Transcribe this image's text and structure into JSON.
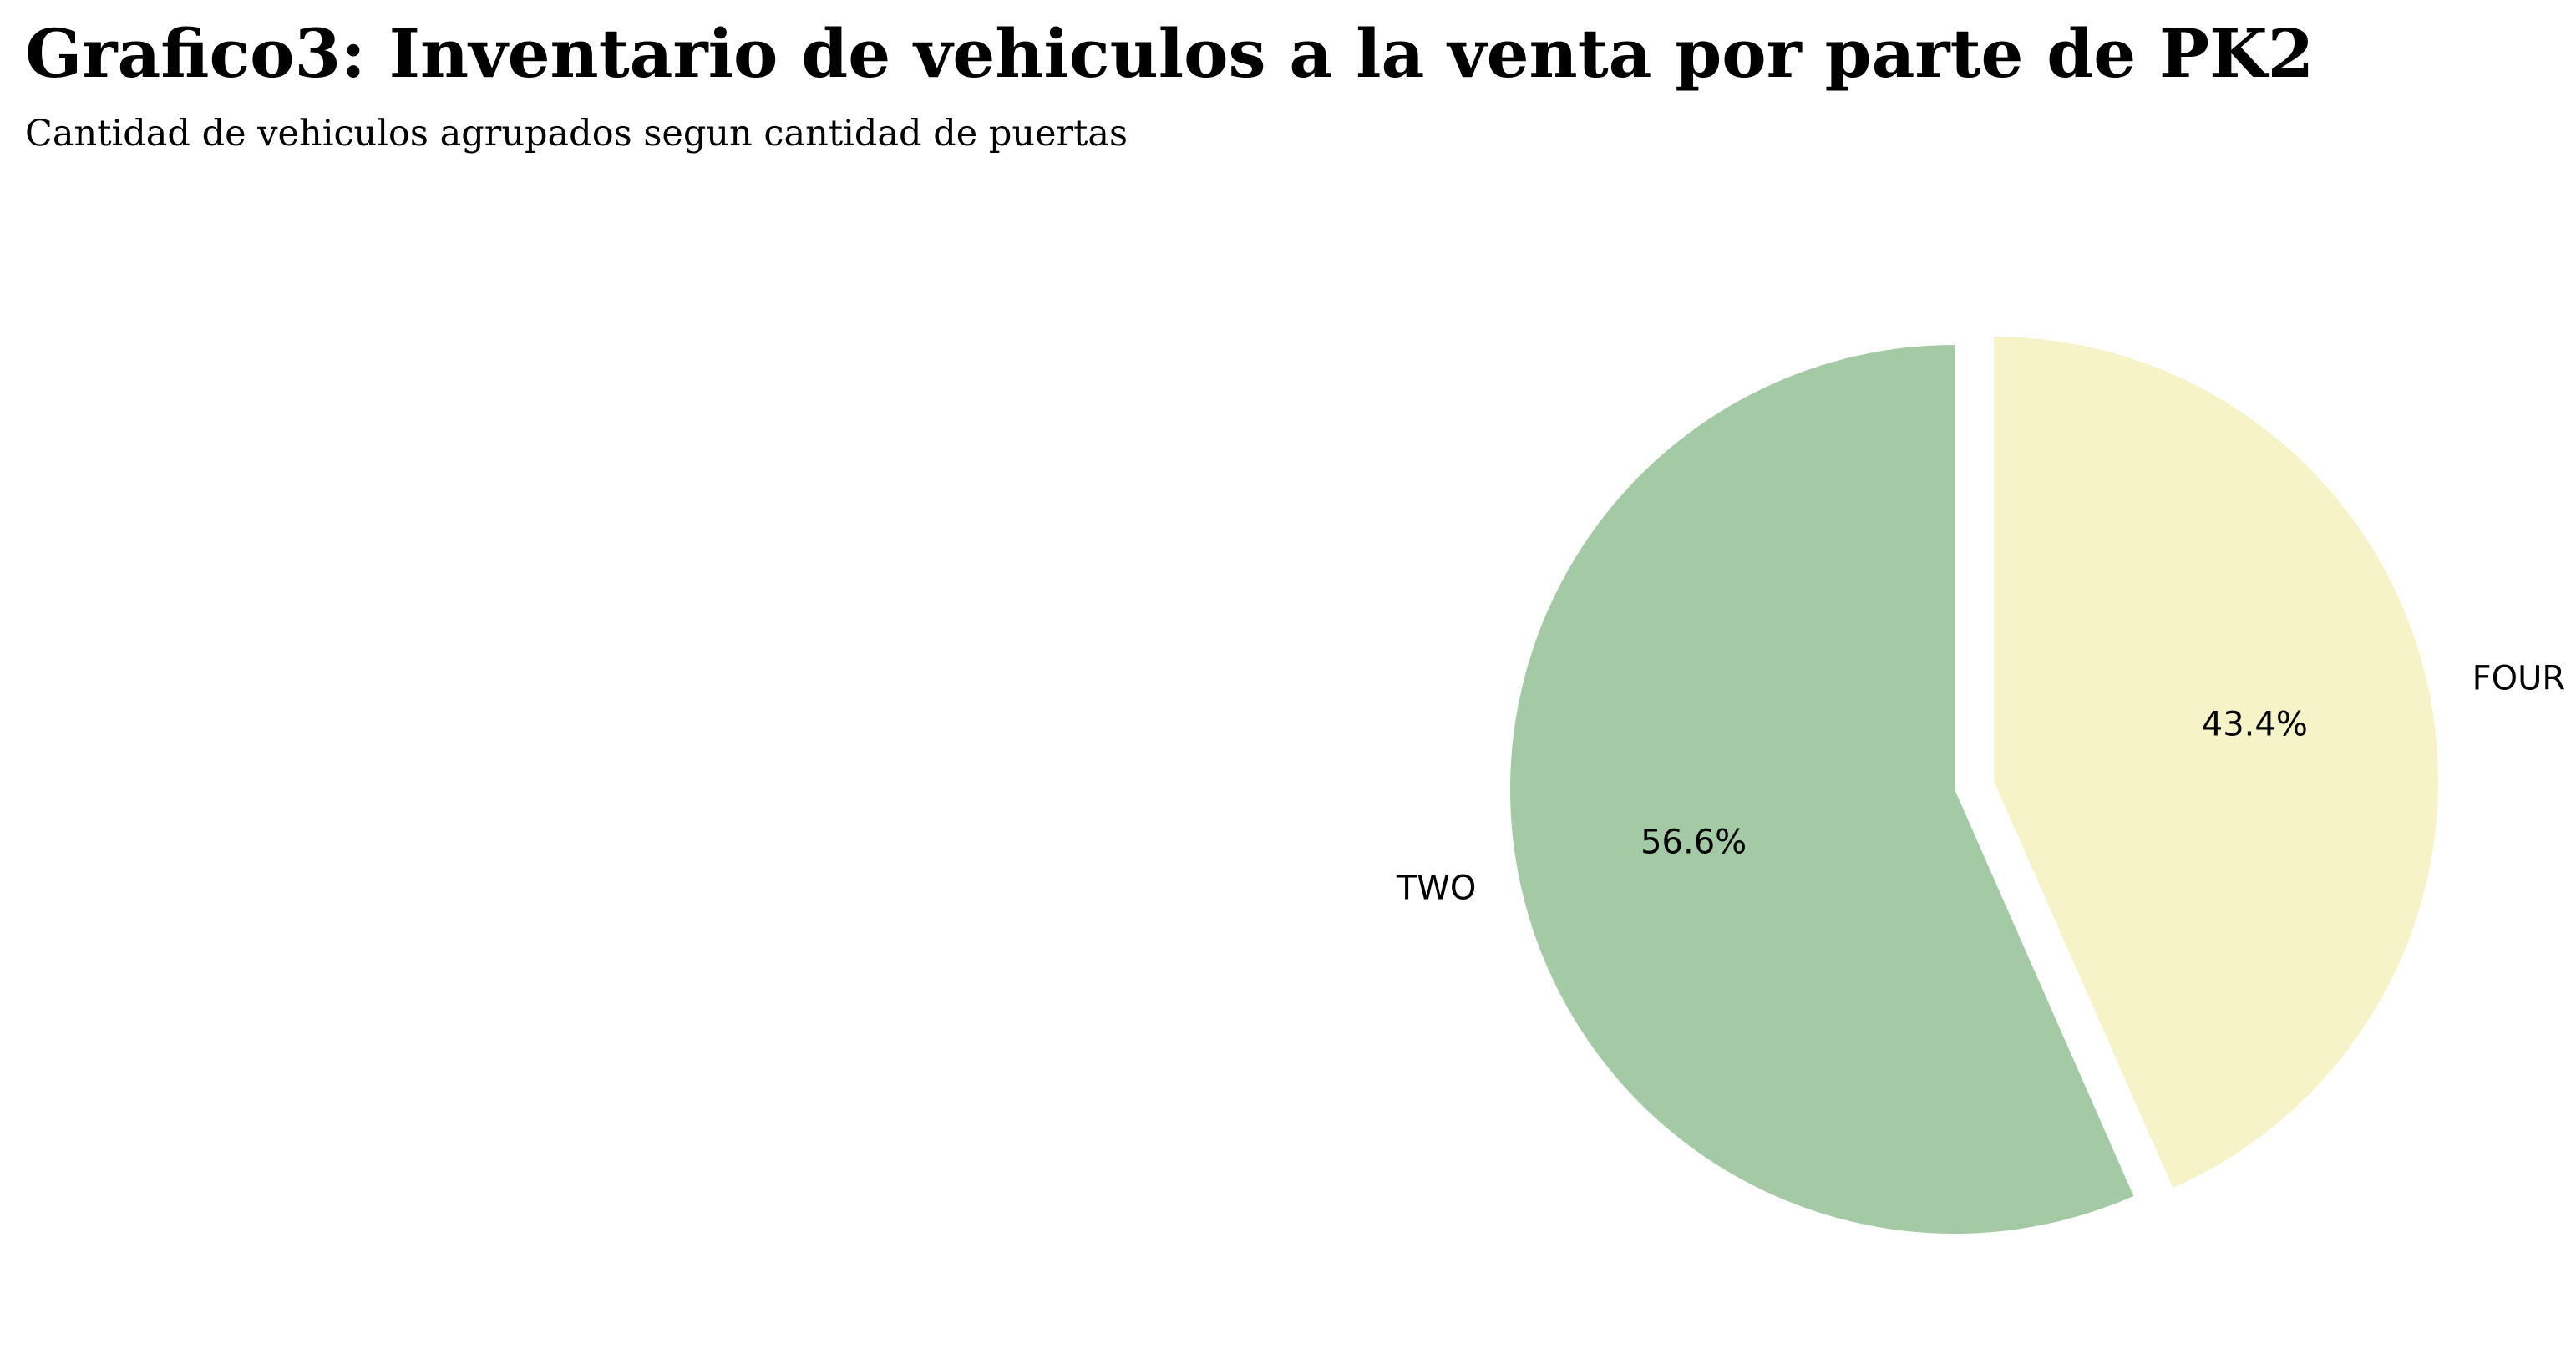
{
  "chart_data": {
    "type": "pie",
    "title": "Grafico3: Inventario de vehiculos a la venta por parte de PK2",
    "subtitle": "Cantidad de vehiculos agrupados segun cantidad de puertas",
    "slices": [
      {
        "label": "FOUR",
        "percent": 43.4,
        "percent_label": "43.4%",
        "color": "#f7f3c8",
        "exploded": true
      },
      {
        "label": "TWO",
        "percent": 56.6,
        "percent_label": "56.6%",
        "color": "#a3caa5",
        "exploded": false
      }
    ],
    "start_angle": "90 degrees (12 o'clock), counter-clockwise",
    "legend": "none"
  }
}
